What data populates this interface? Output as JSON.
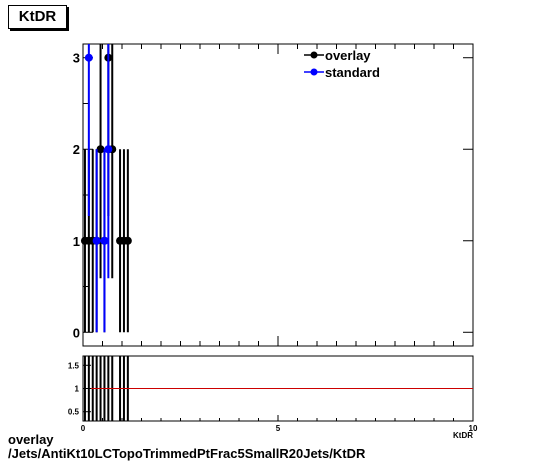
{
  "title": "KtDR",
  "caption": {
    "line1": "overlay",
    "line2": "/Jets/AntiKt10LCTopoTrimmedPtFrac5SmallR20Jets/KtDR"
  },
  "chart_data": {
    "type": "scatter",
    "main": {
      "xlim": [
        0,
        10
      ],
      "ylim": [
        -0.15,
        3.15
      ],
      "yticks": [
        0,
        1,
        2,
        3
      ],
      "ytick_labels": [
        "0",
        "1",
        "2",
        "3"
      ],
      "grid": false,
      "legend_position": "top-right",
      "series": [
        {
          "name": "overlay",
          "color": "#000000",
          "points": [
            {
              "x": 0.05,
              "y": 1,
              "err": 1
            },
            {
              "x": 0.15,
              "y": 1,
              "err": 1
            },
            {
              "x": 0.25,
              "y": 1,
              "err": 1
            },
            {
              "x": 0.35,
              "y": 1,
              "err": 1
            },
            {
              "x": 0.45,
              "y": 2,
              "err": 1.41
            },
            {
              "x": 0.55,
              "y": 1,
              "err": 1
            },
            {
              "x": 0.65,
              "y": 3,
              "err": 1.73
            },
            {
              "x": 0.75,
              "y": 2,
              "err": 1.41
            },
            {
              "x": 0.95,
              "y": 1,
              "err": 1
            },
            {
              "x": 1.05,
              "y": 1,
              "err": 1
            },
            {
              "x": 1.15,
              "y": 1,
              "err": 1
            }
          ]
        },
        {
          "name": "standard",
          "color": "#0000ff",
          "points": [
            {
              "x": 0.15,
              "y": 3,
              "err": 1.73
            },
            {
              "x": 0.35,
              "y": 1,
              "err": 1
            },
            {
              "x": 0.55,
              "y": 1,
              "err": 1
            },
            {
              "x": 0.65,
              "y": 2,
              "err": 1.41
            }
          ]
        }
      ]
    },
    "ratio": {
      "xlim": [
        0,
        10
      ],
      "ylim": [
        0.3,
        1.7
      ],
      "yticks": [
        0.5,
        1,
        1.5
      ],
      "ytick_labels": [
        "0.5",
        "1",
        "1.5"
      ],
      "xticks": [
        0,
        5,
        10
      ],
      "xtick_labels": [
        "0",
        "5",
        "10"
      ],
      "reference_line": 1,
      "reference_color": "#cc0000",
      "error_bar_x": [
        0.05,
        0.15,
        0.25,
        0.35,
        0.45,
        0.55,
        0.65,
        0.75,
        0.95,
        1.05,
        1.15
      ],
      "x_label": "KtDR"
    }
  }
}
